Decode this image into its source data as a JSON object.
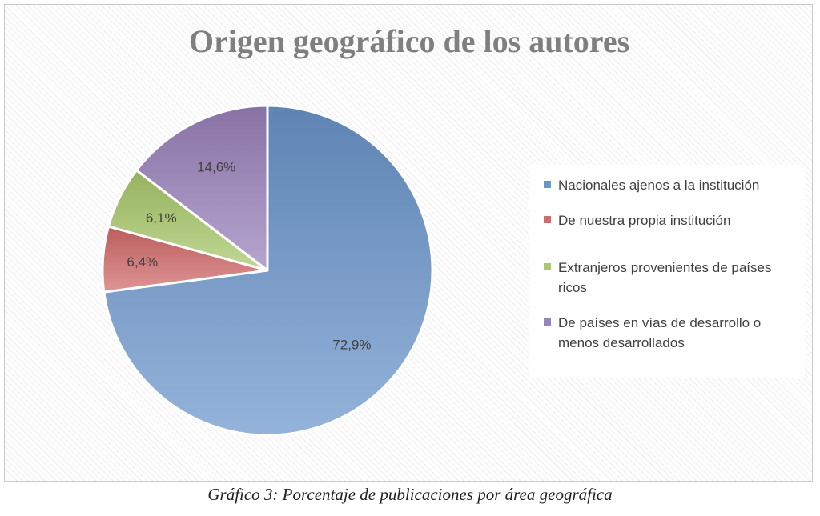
{
  "chart_data": {
    "type": "pie",
    "title": "Origen geográfico de los autores",
    "categories": [
      "Nacionales ajenos a la institución",
      "De nuestra propia institución",
      "Extranjeros provenientes de países ricos",
      "De países en vías de desarrollo o menos desarrollados"
    ],
    "values": [
      72.9,
      6.4,
      6.1,
      14.6
    ],
    "data_labels": [
      "72,9%",
      "6,4%",
      "6,1%",
      "14,6%"
    ],
    "colors": [
      "#6b96cc",
      "#d36b6a",
      "#a9c96b",
      "#9a82bc"
    ],
    "legend_position": "right"
  },
  "caption": "Gráfico 3: Porcentaje de publicaciones por área geográfica"
}
